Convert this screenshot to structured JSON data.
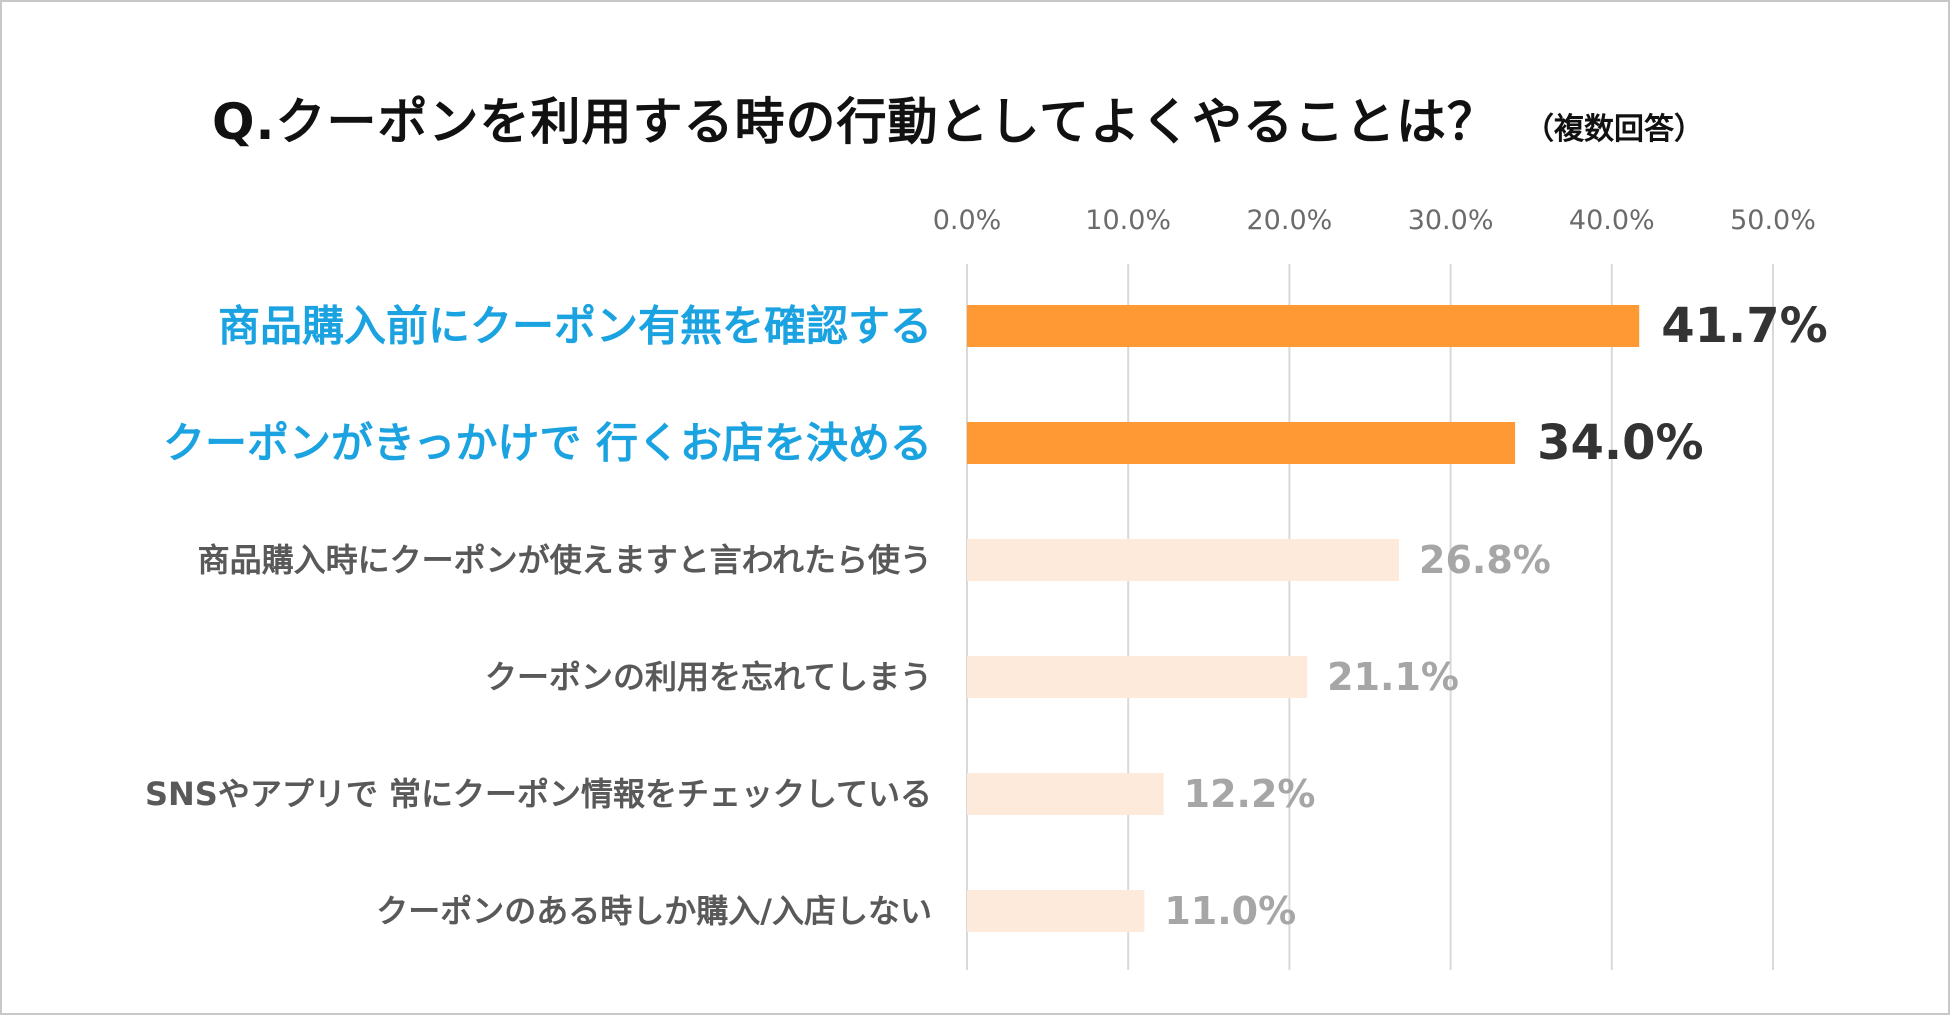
{
  "chart_data": {
    "type": "bar",
    "orientation": "horizontal",
    "title": "Q.クーポンを利用する時の行動としてよくやることは？",
    "subtitle": "（複数回答）",
    "xlim": [
      0,
      50
    ],
    "ticks": [
      "0.0%",
      "10.0%",
      "20.0%",
      "30.0%",
      "40.0%",
      "50.0%"
    ],
    "tick_values": [
      0,
      10,
      20,
      30,
      40,
      50
    ],
    "grid": true,
    "categories": [
      "商品購入前にクーポン有無を確認する",
      "クーポンがきっかけで 行くお店を決める",
      "商品購入時にクーポンが使えますと言われたら使う",
      "クーポンの利用を忘れてしまう",
      "SNSやアプリで 常にクーポン情報をチェックしている",
      "クーポンのある時しか購入/入店しない"
    ],
    "values": [
      41.7,
      34.0,
      26.8,
      21.1,
      12.2,
      11.0
    ],
    "value_labels": [
      "41.7%",
      "34.0%",
      "26.8%",
      "21.1%",
      "12.2%",
      "11.0%"
    ],
    "highlighted": [
      true,
      true,
      false,
      false,
      false,
      false
    ],
    "colors": {
      "highlight_bar": "#ff9933",
      "normal_bar": "#fdeadb",
      "highlight_label": "#1aa3e0",
      "normal_label": "#595959",
      "highlight_value": "#333333",
      "normal_value": "#a6a6a6",
      "grid": "#d9d9d9",
      "tick": "#6b6b6b"
    }
  }
}
